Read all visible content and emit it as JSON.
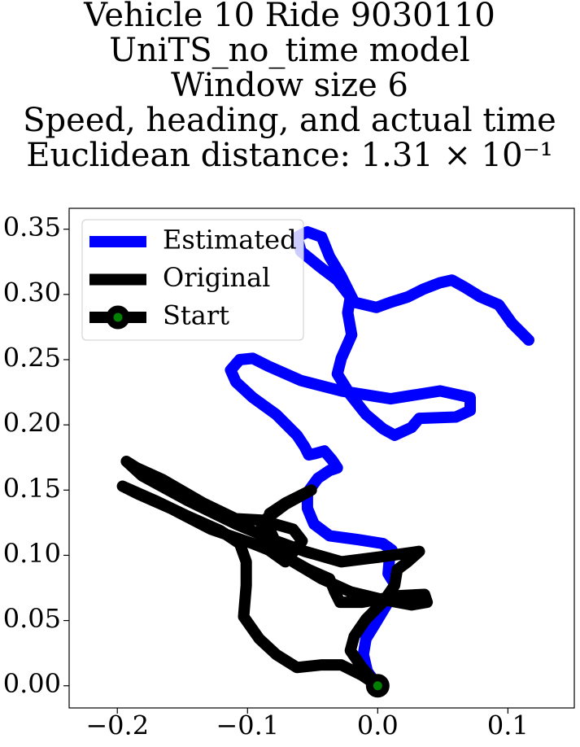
{
  "chart_data": {
    "type": "line",
    "title": [
      "Vehicle 10 Ride 9030110",
      "UniTS_no_time model",
      "Window size 6",
      "Speed, heading, and actual time",
      "Euclidean distance: 1.31 × 10⁻¹"
    ],
    "xlim": [
      -0.237,
      0.151
    ],
    "ylim": [
      -0.017,
      0.366
    ],
    "xticks": [
      {
        "value": -0.2,
        "label": "−0.2"
      },
      {
        "value": -0.1,
        "label": "−0.1"
      },
      {
        "value": 0.0,
        "label": "0.0"
      },
      {
        "value": 0.1,
        "label": "0.1"
      }
    ],
    "yticks": [
      {
        "value": 0.0,
        "label": "0.00"
      },
      {
        "value": 0.05,
        "label": "0.05"
      },
      {
        "value": 0.1,
        "label": "0.10"
      },
      {
        "value": 0.15,
        "label": "0.15"
      },
      {
        "value": 0.2,
        "label": "0.20"
      },
      {
        "value": 0.25,
        "label": "0.25"
      },
      {
        "value": 0.3,
        "label": "0.30"
      },
      {
        "value": 0.35,
        "label": "0.35"
      }
    ],
    "legend": "upper left",
    "series": [
      {
        "name": "Estimated",
        "color": "#0000ff",
        "x": [
          0,
          -0.008,
          -0.011,
          -0.009,
          -0.001,
          0.008,
          0.013,
          0.008,
          0.009,
          0.011,
          0.004,
          -0.015,
          -0.037,
          -0.049,
          -0.054,
          -0.054,
          -0.046,
          -0.037,
          -0.031,
          -0.035,
          -0.041,
          -0.048,
          -0.053,
          -0.056,
          -0.062,
          -0.078,
          -0.096,
          -0.109,
          -0.113,
          -0.106,
          -0.096,
          -0.084,
          -0.059,
          -0.028,
          0.01,
          0.048,
          0.071,
          0.071,
          0.06,
          0.032,
          0.026,
          0.013,
          0.004,
          -0.009,
          -0.021,
          -0.031,
          -0.028,
          -0.02,
          -0.023,
          -0.021,
          -0.031,
          -0.043,
          -0.059,
          -0.062,
          -0.054,
          -0.043,
          -0.037,
          -0.028,
          -0.018,
          -0.001,
          0.01,
          0.023,
          0.035,
          0.048,
          0.057,
          0.066,
          0.079,
          0.093,
          0.103,
          0.116
        ],
        "values": [
          0,
          0.011,
          0.024,
          0.036,
          0.049,
          0.064,
          0.078,
          0.086,
          0.097,
          0.104,
          0.109,
          0.112,
          0.115,
          0.124,
          0.136,
          0.148,
          0.159,
          0.165,
          0.167,
          0.173,
          0.18,
          0.178,
          0.177,
          0.183,
          0.192,
          0.208,
          0.221,
          0.233,
          0.242,
          0.25,
          0.251,
          0.245,
          0.234,
          0.226,
          0.22,
          0.226,
          0.221,
          0.211,
          0.206,
          0.205,
          0.198,
          0.192,
          0.197,
          0.208,
          0.223,
          0.239,
          0.251,
          0.269,
          0.286,
          0.298,
          0.311,
          0.32,
          0.333,
          0.344,
          0.348,
          0.344,
          0.329,
          0.314,
          0.294,
          0.29,
          0.294,
          0.298,
          0.304,
          0.309,
          0.311,
          0.306,
          0.298,
          0.292,
          0.278,
          0.265
        ]
      },
      {
        "name": "Original",
        "color": "#000000",
        "x": [
          0,
          -0.012,
          -0.028,
          -0.043,
          -0.062,
          -0.078,
          -0.091,
          -0.103,
          -0.101,
          -0.101,
          -0.106,
          -0.121,
          -0.146,
          -0.171,
          -0.196,
          -0.184,
          -0.159,
          -0.128,
          -0.096,
          -0.071,
          -0.053,
          -0.037,
          -0.033,
          -0.029,
          -0.012,
          0.016,
          0.036,
          0.038,
          0.026,
          0.004,
          -0.021,
          -0.043,
          -0.065,
          -0.078,
          -0.084,
          -0.083,
          -0.071,
          -0.051,
          -0.071,
          -0.087,
          -0.091,
          -0.085,
          -0.071,
          -0.058,
          -0.065,
          -0.09,
          -0.109,
          -0.134,
          -0.165,
          -0.185,
          -0.193,
          -0.181,
          -0.146,
          -0.109,
          -0.078,
          -0.056,
          -0.028,
          0.004,
          0.032,
          0.023,
          0.015,
          0.013,
          0.004,
          -0.009,
          -0.018,
          -0.021,
          -0.012,
          0
        ],
        "values": [
          0,
          0.008,
          0.016,
          0.016,
          0.014,
          0.024,
          0.036,
          0.053,
          0.077,
          0.095,
          0.109,
          0.119,
          0.13,
          0.142,
          0.153,
          0.147,
          0.136,
          0.12,
          0.109,
          0.099,
          0.089,
          0.082,
          0.072,
          0.064,
          0.064,
          0.069,
          0.07,
          0.064,
          0.062,
          0.066,
          0.072,
          0.082,
          0.095,
          0.109,
          0.122,
          0.132,
          0.14,
          0.15,
          0.139,
          0.127,
          0.117,
          0.105,
          0.095,
          0.111,
          0.12,
          0.127,
          0.128,
          0.14,
          0.158,
          0.167,
          0.172,
          0.161,
          0.142,
          0.124,
          0.111,
          0.103,
          0.095,
          0.099,
          0.103,
          0.095,
          0.089,
          0.077,
          0.064,
          0.051,
          0.038,
          0.027,
          0.014,
          0
        ]
      },
      {
        "name": "Start",
        "color": "#000000",
        "marker": "circle",
        "marker_face": "#008000",
        "x": [
          0
        ],
        "values": [
          0
        ]
      }
    ]
  }
}
